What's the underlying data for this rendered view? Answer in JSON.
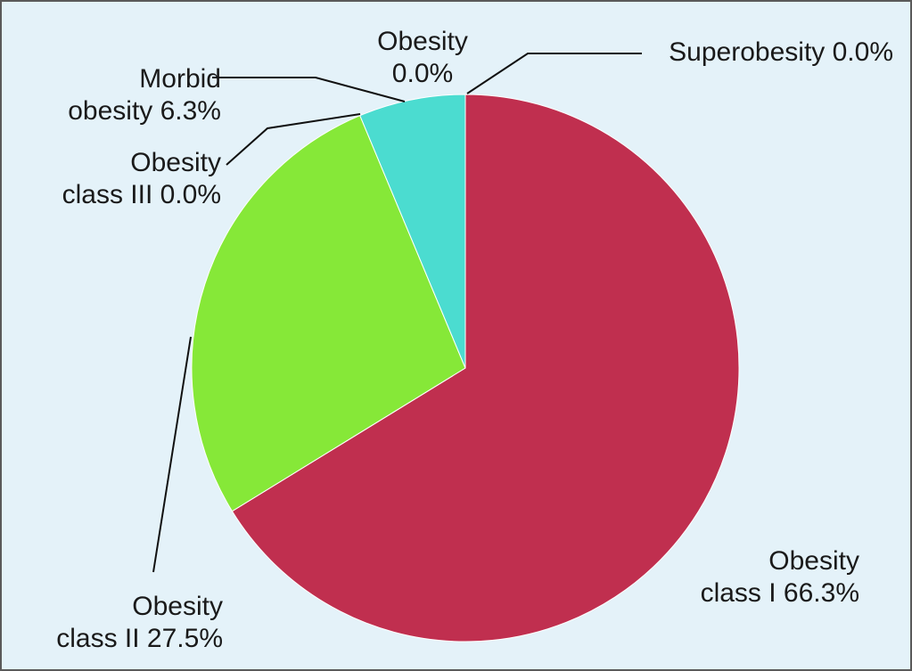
{
  "chart_data": {
    "type": "pie",
    "start": "top",
    "direction": "clockwise",
    "slices": [
      {
        "name": "Obesity class I",
        "value": 66.3,
        "label_lines": [
          "Obesity",
          "class I 66.3%"
        ],
        "color": "#c02f4f"
      },
      {
        "name": "Obesity class II",
        "value": 27.5,
        "label_lines": [
          "Obesity",
          "class II 27.5%"
        ],
        "color": "#86e838"
      },
      {
        "name": "Obesity class III",
        "value": 0.0,
        "label_lines": [
          "Obesity",
          "class III 0.0%"
        ],
        "color": "#4bdcd0"
      },
      {
        "name": "Morbid obesity",
        "value": 6.3,
        "label_lines": [
          "Morbid",
          "obesity 6.3%"
        ],
        "color": "#4bdcd0"
      },
      {
        "name": "Obesity",
        "value": 0.0,
        "label_lines": [
          "Obesity",
          "0.0%"
        ],
        "color": "#4bdcd0"
      },
      {
        "name": "Superobesity",
        "value": 0.0,
        "label_lines": [
          "Superobesity 0.0%"
        ],
        "color": "#4bdcd0"
      }
    ],
    "background_color": "#e4f2f9"
  }
}
